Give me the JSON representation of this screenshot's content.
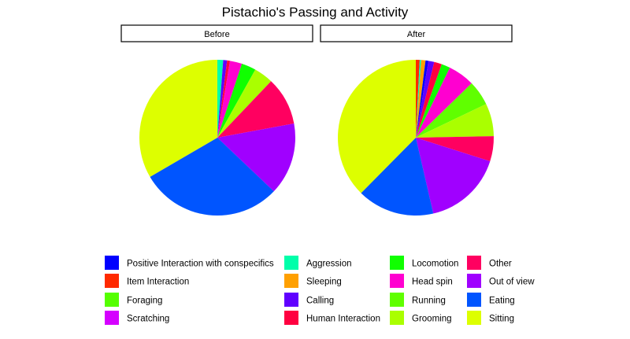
{
  "chart_data": {
    "type": "pie",
    "title": "Pistachio's Passing and Activity",
    "panels": [
      {
        "label": "Before",
        "slices": [
          {
            "category": "Aggression",
            "value": 1.2
          },
          {
            "category": "Calling",
            "value": 0.8
          },
          {
            "category": "Human Interaction",
            "value": 0.6
          },
          {
            "category": "Head spin",
            "value": 2.5
          },
          {
            "category": "Locomotion",
            "value": 3.0
          },
          {
            "category": "Grooming",
            "value": 4.0
          },
          {
            "category": "Other",
            "value": 10.0
          },
          {
            "category": "Out of view",
            "value": 15.0
          },
          {
            "category": "Eating",
            "value": 29.5
          },
          {
            "category": "Sitting",
            "value": 33.4
          }
        ]
      },
      {
        "label": "After",
        "slices": [
          {
            "category": "Item Interaction",
            "value": 0.8
          },
          {
            "category": "Aggression",
            "value": 0.3
          },
          {
            "category": "Sleeping",
            "value": 0.9
          },
          {
            "category": "Positive Interaction with conspecifics",
            "value": 0.6
          },
          {
            "category": "Calling",
            "value": 1.2
          },
          {
            "category": "Human Interaction",
            "value": 1.6
          },
          {
            "category": "Locomotion",
            "value": 1.8
          },
          {
            "category": "Head spin",
            "value": 5.5
          },
          {
            "category": "Running",
            "value": 5.2
          },
          {
            "category": "Grooming",
            "value": 6.8
          },
          {
            "category": "Other",
            "value": 5.2
          },
          {
            "category": "Out of view",
            "value": 16.5
          },
          {
            "category": "Eating",
            "value": 16.0
          },
          {
            "category": "Sitting",
            "value": 37.6
          }
        ]
      }
    ],
    "legend_position": "bottom",
    "legend": [
      {
        "label": "Positive Interaction with conspecifics",
        "color": "#0000FF"
      },
      {
        "label": "Item Interaction",
        "color": "#FF2A00"
      },
      {
        "label": "Foraging",
        "color": "#55FF00"
      },
      {
        "label": "Scratching",
        "color": "#D500FF"
      },
      {
        "label": "Aggression",
        "color": "#00FFAA"
      },
      {
        "label": "Sleeping",
        "color": "#FFA000"
      },
      {
        "label": "Calling",
        "color": "#6000FF"
      },
      {
        "label": "Human Interaction",
        "color": "#FF0040"
      },
      {
        "label": "Locomotion",
        "color": "#10FF00"
      },
      {
        "label": "Head spin",
        "color": "#FF00D0"
      },
      {
        "label": "Running",
        "color": "#60FF00"
      },
      {
        "label": "Grooming",
        "color": "#AAFF00"
      },
      {
        "label": "Other",
        "color": "#FF0060"
      },
      {
        "label": "Out of view",
        "color": "#A000FF"
      },
      {
        "label": "Eating",
        "color": "#0055FF"
      },
      {
        "label": "Sitting",
        "color": "#DDFF00"
      }
    ]
  }
}
